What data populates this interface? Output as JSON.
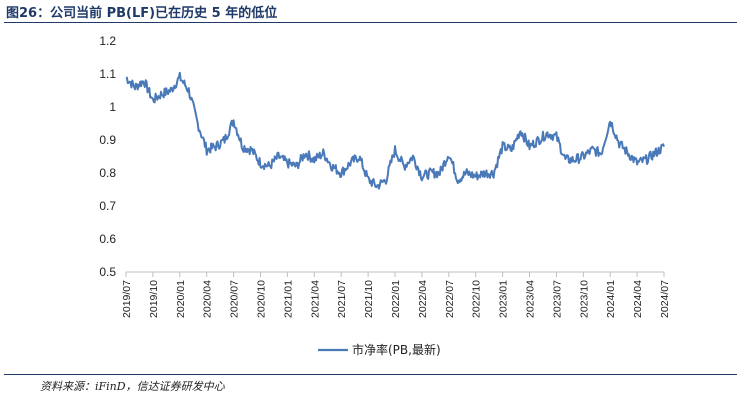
{
  "header": {
    "title": "图26：公司当前 PB(LF)已在历史 5 年的低位"
  },
  "footer": {
    "source": "资料来源：iFinD，信达证券研发中心"
  },
  "colors": {
    "line": "#4a79b8",
    "title": "#1f3a68",
    "axis": "#bfbfbf"
  },
  "chart_data": {
    "type": "line",
    "title": "",
    "xlabel": "",
    "ylabel": "",
    "ylim": [
      0.5,
      1.2
    ],
    "yticks": [
      "0.5",
      "0.6",
      "0.7",
      "0.8",
      "0.9",
      "1",
      "1.1",
      "1.2"
    ],
    "ytick_values": [
      0.5,
      0.6,
      0.7,
      0.8,
      0.9,
      1.0,
      1.1,
      1.2
    ],
    "xticks": [
      "2019/07",
      "2019/10",
      "2020/01",
      "2020/04",
      "2020/07",
      "2020/10",
      "2021/01",
      "2021/04",
      "2021/07",
      "2021/10",
      "2022/01",
      "2022/04",
      "2022/07",
      "2022/10",
      "2023/01",
      "2023/04",
      "2023/07",
      "2023/10",
      "2024/01",
      "2024/04",
      "2024/07"
    ],
    "grid": false,
    "legend": "bottom-center",
    "series": [
      {
        "name": "市净率(PB,最新)",
        "x": [
          "2019/07",
          "2019/08",
          "2019/09",
          "2019/10",
          "2019/11",
          "2019/12",
          "2020/01",
          "2020/02",
          "2020/03",
          "2020/04",
          "2020/05",
          "2020/06",
          "2020/07",
          "2020/08",
          "2020/09",
          "2020/10",
          "2020/11",
          "2020/12",
          "2021/01",
          "2021/02",
          "2021/03",
          "2021/04",
          "2021/05",
          "2021/06",
          "2021/07",
          "2021/08",
          "2021/09",
          "2021/10",
          "2021/11",
          "2021/12",
          "2022/01",
          "2022/02",
          "2022/03",
          "2022/04",
          "2022/05",
          "2022/06",
          "2022/07",
          "2022/08",
          "2022/09",
          "2022/10",
          "2022/11",
          "2022/12",
          "2023/01",
          "2023/02",
          "2023/03",
          "2023/04",
          "2023/05",
          "2023/06",
          "2023/07",
          "2023/08",
          "2023/09",
          "2023/10",
          "2023/11",
          "2023/12",
          "2024/01",
          "2024/02",
          "2024/03",
          "2024/04",
          "2024/05",
          "2024/06",
          "2024/07"
        ],
        "values": [
          1.09,
          1.06,
          1.08,
          1.02,
          1.04,
          1.05,
          1.09,
          1.05,
          0.95,
          0.87,
          0.88,
          0.9,
          0.96,
          0.88,
          0.87,
          0.83,
          0.82,
          0.85,
          0.83,
          0.82,
          0.86,
          0.84,
          0.86,
          0.82,
          0.8,
          0.83,
          0.85,
          0.78,
          0.76,
          0.78,
          0.87,
          0.82,
          0.85,
          0.79,
          0.8,
          0.8,
          0.86,
          0.78,
          0.8,
          0.79,
          0.8,
          0.8,
          0.88,
          0.87,
          0.93,
          0.88,
          0.9,
          0.92,
          0.91,
          0.84,
          0.84,
          0.85,
          0.87,
          0.86,
          0.96,
          0.89,
          0.86,
          0.83,
          0.84,
          0.86,
          0.88
        ]
      }
    ]
  }
}
